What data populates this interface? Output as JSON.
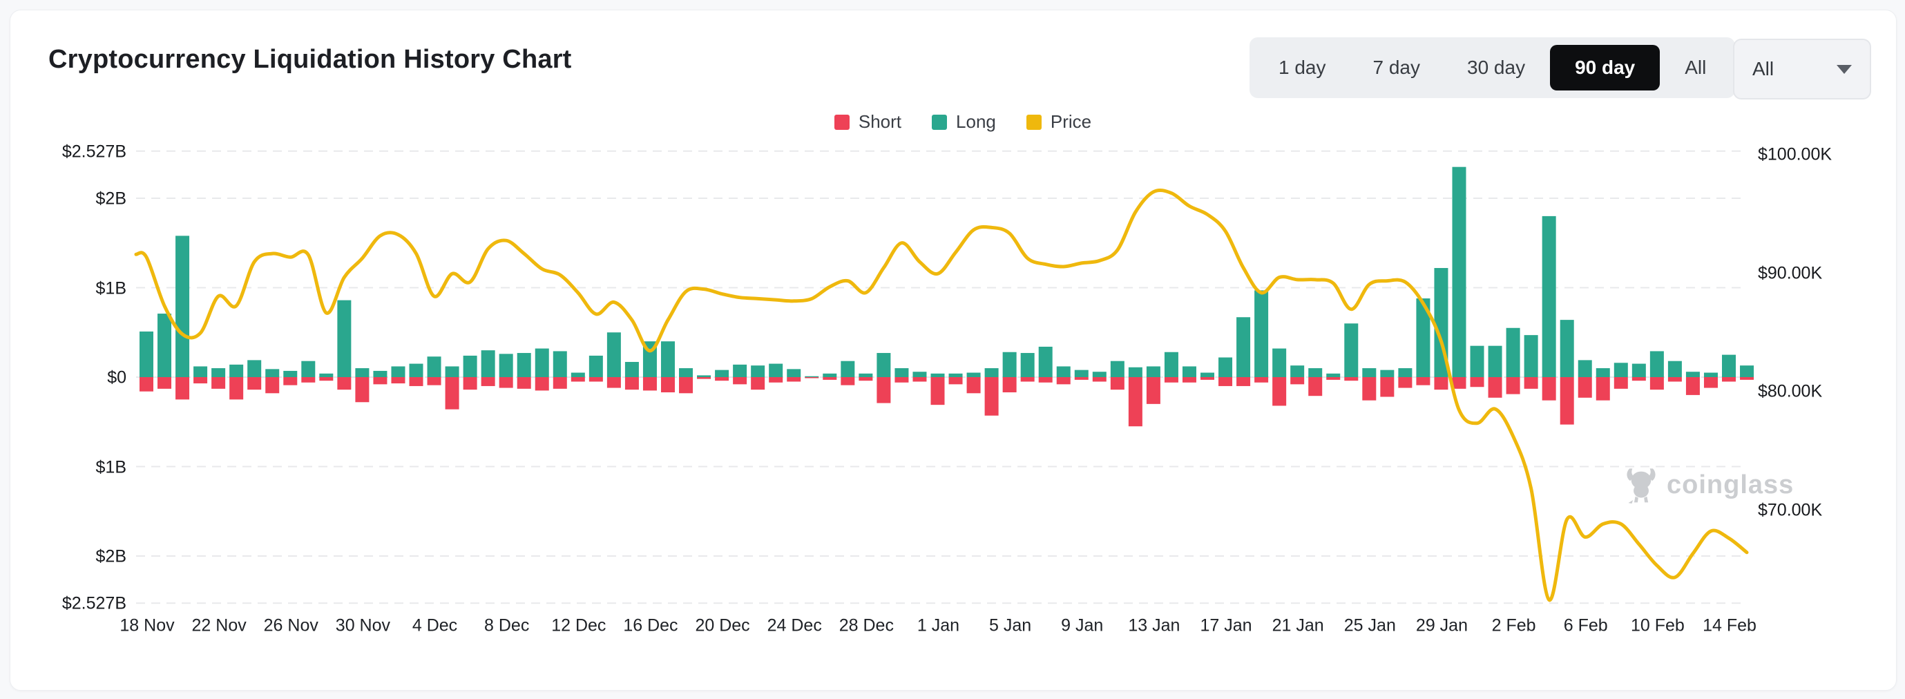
{
  "page": {
    "title": "Cryptocurrency Liquidation History Chart"
  },
  "toolbar": {
    "ranges": [
      "1 day",
      "7 day",
      "30 day",
      "90 day",
      "All"
    ],
    "active_range": "90 day",
    "symbol_dropdown": {
      "value": "All"
    }
  },
  "legend": {
    "items": [
      {
        "label": "Short",
        "color": "#ee4156"
      },
      {
        "label": "Long",
        "color": "#2aa78e"
      },
      {
        "label": "Price",
        "color": "#efb80d"
      }
    ]
  },
  "watermark": {
    "text": "coinglass"
  },
  "chart_data": {
    "type": "bar",
    "title": "Cryptocurrency Liquidation History Chart",
    "grid": "dashed horizontal",
    "legend_position": "top center",
    "dates": [
      "18 Nov",
      "19 Nov",
      "20 Nov",
      "21 Nov",
      "22 Nov",
      "23 Nov",
      "24 Nov",
      "25 Nov",
      "26 Nov",
      "27 Nov",
      "28 Nov",
      "29 Nov",
      "30 Nov",
      "1 Dec",
      "2 Dec",
      "3 Dec",
      "4 Dec",
      "5 Dec",
      "6 Dec",
      "7 Dec",
      "8 Dec",
      "9 Dec",
      "10 Dec",
      "11 Dec",
      "12 Dec",
      "13 Dec",
      "14 Dec",
      "15 Dec",
      "16 Dec",
      "17 Dec",
      "18 Dec",
      "19 Dec",
      "20 Dec",
      "21 Dec",
      "22 Dec",
      "23 Dec",
      "24 Dec",
      "25 Dec",
      "26 Dec",
      "27 Dec",
      "28 Dec",
      "29 Dec",
      "30 Dec",
      "31 Dec",
      "1 Jan",
      "2 Jan",
      "3 Jan",
      "4 Jan",
      "5 Jan",
      "6 Jan",
      "7 Jan",
      "8 Jan",
      "9 Jan",
      "10 Jan",
      "11 Jan",
      "12 Jan",
      "13 Jan",
      "14 Jan",
      "15 Jan",
      "16 Jan",
      "17 Jan",
      "18 Jan",
      "19 Jan",
      "20 Jan",
      "21 Jan",
      "22 Jan",
      "23 Jan",
      "24 Jan",
      "25 Jan",
      "26 Jan",
      "27 Jan",
      "28 Jan",
      "29 Jan",
      "30 Jan",
      "31 Jan",
      "1 Feb",
      "2 Feb",
      "3 Feb",
      "4 Feb",
      "5 Feb",
      "6 Feb",
      "7 Feb",
      "8 Feb",
      "9 Feb",
      "10 Feb",
      "11 Feb",
      "12 Feb",
      "13 Feb",
      "14 Feb",
      "15 Feb"
    ],
    "x_ticks": [
      "18 Nov",
      "22 Nov",
      "26 Nov",
      "30 Nov",
      "4 Dec",
      "8 Dec",
      "12 Dec",
      "16 Dec",
      "20 Dec",
      "24 Dec",
      "28 Dec",
      "1 Jan",
      "5 Jan",
      "9 Jan",
      "13 Jan",
      "17 Jan",
      "21 Jan",
      "25 Jan",
      "29 Jan",
      "2 Feb",
      "6 Feb",
      "10 Feb",
      "14 Feb"
    ],
    "x_tick_every": 4,
    "y_left": {
      "ticks": [
        "$2.527B",
        "$2B",
        "$1B",
        "$0",
        "$1B",
        "$2B",
        "$2.527B"
      ],
      "values": [
        2.527,
        2,
        1,
        0,
        -1,
        -2,
        -2.527
      ]
    },
    "y_right": {
      "ticks": [
        "$100.00K",
        "$90.00K",
        "$80.00K",
        "$70.00K"
      ],
      "values": [
        100,
        90,
        80,
        70
      ]
    },
    "ylim_left": [
      -2.527,
      2.527
    ],
    "ylim_right": [
      62.2,
      100.3
    ],
    "series": [
      {
        "name": "Long",
        "type": "bar",
        "direction": "up",
        "unit": "billion USD",
        "color": "#2aa78e",
        "values": [
          0.51,
          0.71,
          1.58,
          0.12,
          0.1,
          0.14,
          0.19,
          0.09,
          0.07,
          0.18,
          0.04,
          0.86,
          0.1,
          0.07,
          0.12,
          0.15,
          0.23,
          0.12,
          0.24,
          0.3,
          0.26,
          0.27,
          0.32,
          0.29,
          0.05,
          0.24,
          0.5,
          0.17,
          0.4,
          0.4,
          0.1,
          0.02,
          0.08,
          0.14,
          0.13,
          0.15,
          0.09,
          0.01,
          0.04,
          0.18,
          0.04,
          0.27,
          0.1,
          0.06,
          0.04,
          0.04,
          0.05,
          0.1,
          0.28,
          0.27,
          0.34,
          0.12,
          0.08,
          0.06,
          0.18,
          0.11,
          0.12,
          0.28,
          0.12,
          0.05,
          0.22,
          0.67,
          0.97,
          0.32,
          0.13,
          0.1,
          0.04,
          0.6,
          0.1,
          0.08,
          0.1,
          0.88,
          1.22,
          2.35,
          0.35,
          0.35,
          0.55,
          0.47,
          1.8,
          0.64,
          0.19,
          0.1,
          0.16,
          0.15,
          0.29,
          0.18,
          0.06,
          0.05,
          0.25,
          0.13
        ]
      },
      {
        "name": "Short",
        "type": "bar",
        "direction": "down",
        "unit": "billion USD",
        "color": "#ee4156",
        "values": [
          0.16,
          0.13,
          0.25,
          0.07,
          0.13,
          0.25,
          0.14,
          0.18,
          0.09,
          0.06,
          0.04,
          0.14,
          0.28,
          0.08,
          0.07,
          0.1,
          0.09,
          0.36,
          0.14,
          0.1,
          0.12,
          0.13,
          0.15,
          0.13,
          0.05,
          0.05,
          0.12,
          0.14,
          0.15,
          0.17,
          0.18,
          0.02,
          0.04,
          0.08,
          0.14,
          0.06,
          0.05,
          0.01,
          0.03,
          0.09,
          0.04,
          0.29,
          0.06,
          0.05,
          0.31,
          0.08,
          0.18,
          0.43,
          0.17,
          0.05,
          0.06,
          0.08,
          0.03,
          0.05,
          0.14,
          0.55,
          0.3,
          0.06,
          0.06,
          0.03,
          0.1,
          0.1,
          0.06,
          0.32,
          0.08,
          0.21,
          0.03,
          0.04,
          0.26,
          0.22,
          0.12,
          0.09,
          0.14,
          0.13,
          0.11,
          0.23,
          0.19,
          0.13,
          0.26,
          0.53,
          0.23,
          0.26,
          0.13,
          0.04,
          0.14,
          0.05,
          0.2,
          0.12,
          0.05,
          0.03
        ]
      },
      {
        "name": "Price",
        "type": "line",
        "unit": "thousand USD",
        "color": "#efb80d",
        "values": [
          91.3,
          87.2,
          84.8,
          84.9,
          88.0,
          87.2,
          90.9,
          91.6,
          91.3,
          91.5,
          86.6,
          89.6,
          91.2,
          93.1,
          93.2,
          91.6,
          88.0,
          89.9,
          89.2,
          92.0,
          92.7,
          91.6,
          90.3,
          89.8,
          88.3,
          86.5,
          87.5,
          86.0,
          83.4,
          86.0,
          88.4,
          88.6,
          88.2,
          87.9,
          87.8,
          87.7,
          87.6,
          87.8,
          88.8,
          89.3,
          88.3,
          90.4,
          92.5,
          90.9,
          89.9,
          91.7,
          93.6,
          93.8,
          93.3,
          91.2,
          90.7,
          90.5,
          90.8,
          91.0,
          91.9,
          95.1,
          96.8,
          96.7,
          95.6,
          94.9,
          93.5,
          90.4,
          88.3,
          89.6,
          89.4,
          89.4,
          89.1,
          86.9,
          89.0,
          89.3,
          89.2,
          87.4,
          84.2,
          78.4,
          77.3,
          78.5,
          76.2,
          71.8,
          62.4,
          69.2,
          67.7,
          68.8,
          68.8,
          67.1,
          65.3,
          64.3,
          66.3,
          68.2,
          67.6,
          66.4
        ]
      }
    ]
  }
}
